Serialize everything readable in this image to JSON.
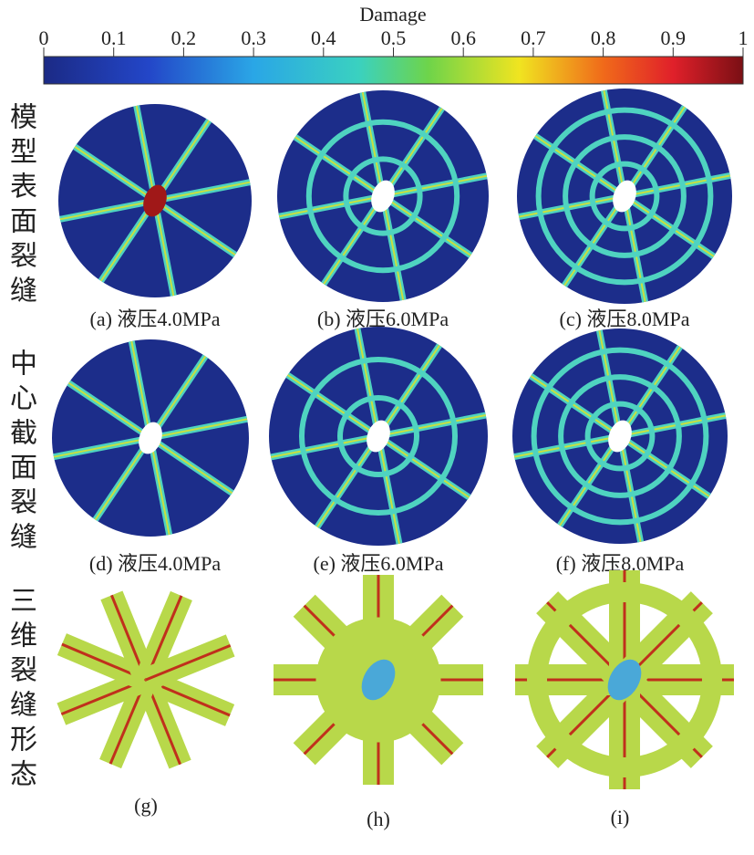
{
  "colorbar": {
    "title": "Damage",
    "lim": [
      0,
      1
    ],
    "ticks": [
      0,
      0.1,
      0.2,
      0.3,
      0.4,
      0.5,
      0.6,
      0.7,
      0.8,
      0.9,
      1
    ]
  },
  "rows": [
    {
      "label": "模型表面裂缝",
      "panels": [
        {
          "caption": "(a) 液压4.0MPa"
        },
        {
          "caption": "(b) 液压6.0MPa"
        },
        {
          "caption": "(c) 液压8.0MPa"
        }
      ]
    },
    {
      "label": "中心截面裂缝",
      "panels": [
        {
          "caption": "(d) 液压4.0MPa"
        },
        {
          "caption": "(e) 液压6.0MPa"
        },
        {
          "caption": "(f) 液压8.0MPa"
        }
      ]
    },
    {
      "label": "三维裂缝形态",
      "panels": [
        {
          "caption": "(g)"
        },
        {
          "caption": "(h)"
        },
        {
          "caption": "(i)"
        }
      ]
    }
  ]
}
